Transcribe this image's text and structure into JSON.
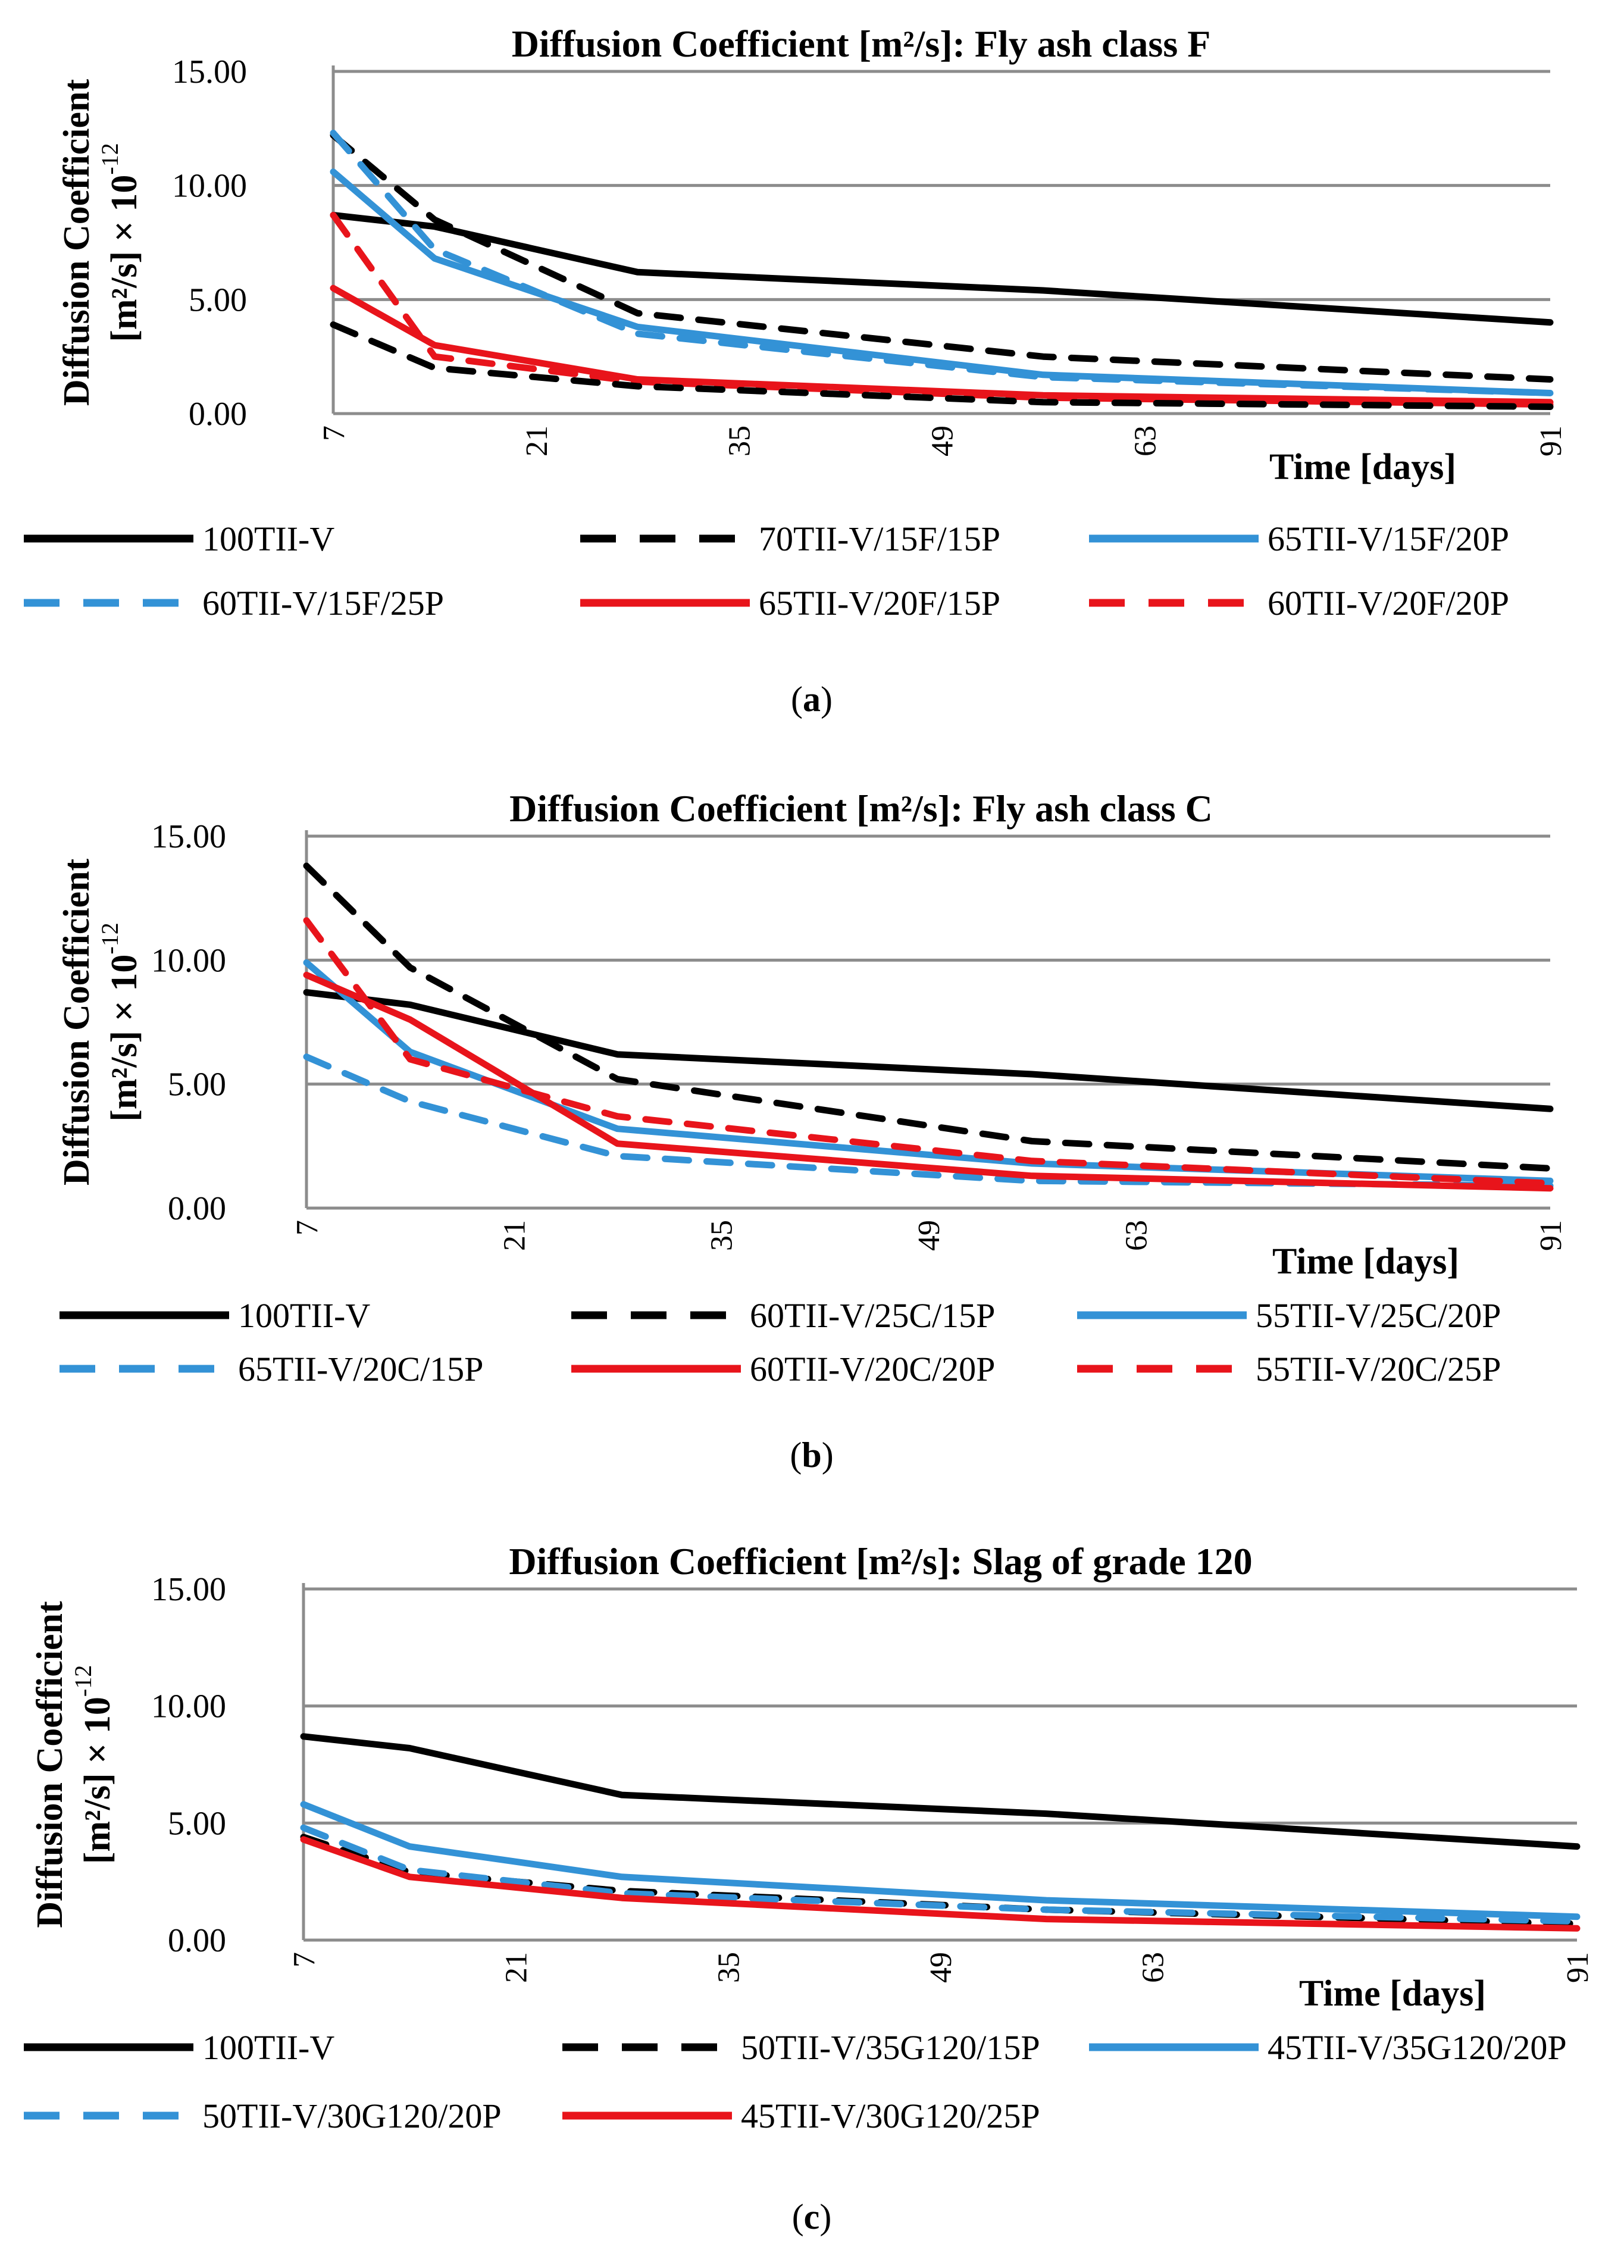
{
  "figure": {
    "panels": [
      "a",
      "b",
      "c"
    ]
  },
  "chart_data": [
    {
      "panel": "a",
      "type": "line",
      "title": "Diffusion Coefficient [m²/s]: Fly ash class F",
      "ylabel_line1": "Diffusion Coefficient",
      "ylabel_line2": "[m²/s] × 10",
      "ylabel_exp": "-12",
      "xlabel": "Time [days]",
      "caption_open": "(",
      "caption_letter": "a",
      "caption_close": ")",
      "x_range": [
        7,
        91
      ],
      "ylim": [
        0,
        15
      ],
      "yticks": [
        "15.00",
        "10.00",
        "5.00",
        "0.00"
      ],
      "xticks": [
        "7",
        "21",
        "35",
        "49",
        "63",
        "91"
      ],
      "x_ticks_values": [
        7,
        21,
        35,
        49,
        63,
        91
      ],
      "grid": true,
      "legend_position": "bottom",
      "series": [
        {
          "name": "100TII-V",
          "color": "#000000",
          "dashed": false,
          "x": [
            7,
            14,
            28,
            56,
            91
          ],
          "values": [
            8.7,
            8.2,
            6.2,
            5.4,
            4.0
          ]
        },
        {
          "name": "70TII-V/15F/15P",
          "color": "#000000",
          "dashed": true,
          "x": [
            7,
            14,
            28,
            56,
            91
          ],
          "values": [
            12.2,
            8.5,
            4.4,
            2.5,
            1.5
          ]
        },
        {
          "name": "65TII-V/15F/20P",
          "color": "#3392d6",
          "dashed": false,
          "x": [
            7,
            14,
            28,
            56,
            91
          ],
          "values": [
            10.6,
            6.8,
            3.8,
            1.7,
            0.9
          ]
        },
        {
          "name": "60TII-V/15F/25P",
          "color": "#3392d6",
          "dashed": true,
          "x": [
            7,
            14,
            28,
            56,
            91
          ],
          "values": [
            12.3,
            7.2,
            3.5,
            1.6,
            0.9
          ]
        },
        {
          "name": "65TII-V/20F/15P",
          "color": "#e8141b",
          "dashed": false,
          "x": [
            7,
            14,
            28,
            56,
            91
          ],
          "values": [
            5.5,
            3.0,
            1.5,
            0.8,
            0.5
          ]
        },
        {
          "name": "60TII-V/20F/20P",
          "color": "#e8141b",
          "dashed": true,
          "x": [
            7,
            14,
            28,
            56,
            91
          ],
          "values": [
            8.7,
            2.5,
            1.4,
            0.7,
            0.4
          ]
        },
        {
          "name": "",
          "color": "#000000",
          "dashed": true,
          "x": [
            7,
            14,
            28,
            56,
            91
          ],
          "values": [
            3.9,
            2.0,
            1.2,
            0.5,
            0.3
          ]
        }
      ]
    },
    {
      "panel": "b",
      "type": "line",
      "title": "Diffusion Coefficient [m²/s]: Fly ash class C",
      "ylabel_line1": "Diffusion Coefficient",
      "ylabel_line2": "[m²/s] × 10",
      "ylabel_exp": "-12",
      "xlabel": "Time [days]",
      "caption_open": "(",
      "caption_letter": "b",
      "caption_close": ")",
      "x_range": [
        7,
        91
      ],
      "ylim": [
        0,
        15
      ],
      "yticks": [
        "15.00",
        "10.00",
        "5.00",
        "0.00"
      ],
      "xticks": [
        "7",
        "21",
        "35",
        "49",
        "63",
        "91"
      ],
      "x_ticks_values": [
        7,
        21,
        35,
        49,
        63,
        91
      ],
      "grid": true,
      "legend_position": "bottom",
      "series": [
        {
          "name": "100TII-V",
          "color": "#000000",
          "dashed": false,
          "x": [
            7,
            14,
            28,
            56,
            91
          ],
          "values": [
            8.7,
            8.2,
            6.2,
            5.4,
            4.0
          ]
        },
        {
          "name": "60TII-V/25C/15P",
          "color": "#000000",
          "dashed": true,
          "x": [
            7,
            14,
            28,
            56,
            91
          ],
          "values": [
            13.8,
            9.7,
            5.2,
            2.7,
            1.6
          ]
        },
        {
          "name": "55TII-V/25C/20P",
          "color": "#3392d6",
          "dashed": false,
          "x": [
            7,
            14,
            28,
            56,
            91
          ],
          "values": [
            9.9,
            6.3,
            3.2,
            1.8,
            1.1
          ]
        },
        {
          "name": "65TII-V/20C/15P",
          "color": "#3392d6",
          "dashed": true,
          "x": [
            7,
            14,
            28,
            56,
            91
          ],
          "values": [
            6.1,
            4.3,
            2.1,
            1.1,
            0.9
          ]
        },
        {
          "name": "60TII-V/20C/20P",
          "color": "#e8141b",
          "dashed": false,
          "x": [
            7,
            14,
            28,
            56,
            91
          ],
          "values": [
            9.4,
            7.6,
            2.6,
            1.3,
            0.8
          ]
        },
        {
          "name": "55TII-V/20C/25P",
          "color": "#e8141b",
          "dashed": true,
          "x": [
            7,
            14,
            28,
            56,
            91
          ],
          "values": [
            11.6,
            6.0,
            3.7,
            1.9,
            1.0
          ]
        }
      ]
    },
    {
      "panel": "c",
      "type": "line",
      "title": "Diffusion Coefficient [m²/s]: Slag of grade 120",
      "ylabel_line1": "Diffusion Coefficient",
      "ylabel_line2": "[m²/s] × 10",
      "ylabel_exp": "-12",
      "xlabel": "Time [days]",
      "caption_open": "(",
      "caption_letter": "c",
      "caption_close": ")",
      "x_range": [
        7,
        91
      ],
      "ylim": [
        0,
        15
      ],
      "yticks": [
        "15.00",
        "10.00",
        "5.00",
        "0.00"
      ],
      "xticks": [
        "7",
        "21",
        "35",
        "49",
        "63",
        "91"
      ],
      "x_ticks_values": [
        7,
        21,
        35,
        49,
        63,
        91
      ],
      "grid": true,
      "legend_position": "bottom",
      "series": [
        {
          "name": "100TII-V",
          "color": "#000000",
          "dashed": false,
          "x": [
            7,
            14,
            28,
            56,
            91
          ],
          "values": [
            8.7,
            8.2,
            6.2,
            5.4,
            4.0
          ]
        },
        {
          "name": "50TII-V/35G120/15P",
          "color": "#000000",
          "dashed": true,
          "x": [
            7,
            14,
            28,
            56,
            91
          ],
          "values": [
            4.4,
            2.9,
            2.1,
            1.3,
            0.7
          ]
        },
        {
          "name": "45TII-V/35G120/20P",
          "color": "#3392d6",
          "dashed": false,
          "x": [
            7,
            14,
            28,
            56,
            91
          ],
          "values": [
            5.8,
            4.0,
            2.7,
            1.7,
            1.0
          ]
        },
        {
          "name": "50TII-V/30G120/20P",
          "color": "#3392d6",
          "dashed": true,
          "x": [
            7,
            14,
            28,
            56,
            91
          ],
          "values": [
            4.8,
            3.0,
            2.0,
            1.3,
            0.8
          ]
        },
        {
          "name": "45TII-V/30G120/25P",
          "color": "#e8141b",
          "dashed": false,
          "x": [
            7,
            14,
            28,
            56,
            91
          ],
          "values": [
            4.3,
            2.7,
            1.8,
            0.9,
            0.5
          ]
        }
      ]
    }
  ]
}
